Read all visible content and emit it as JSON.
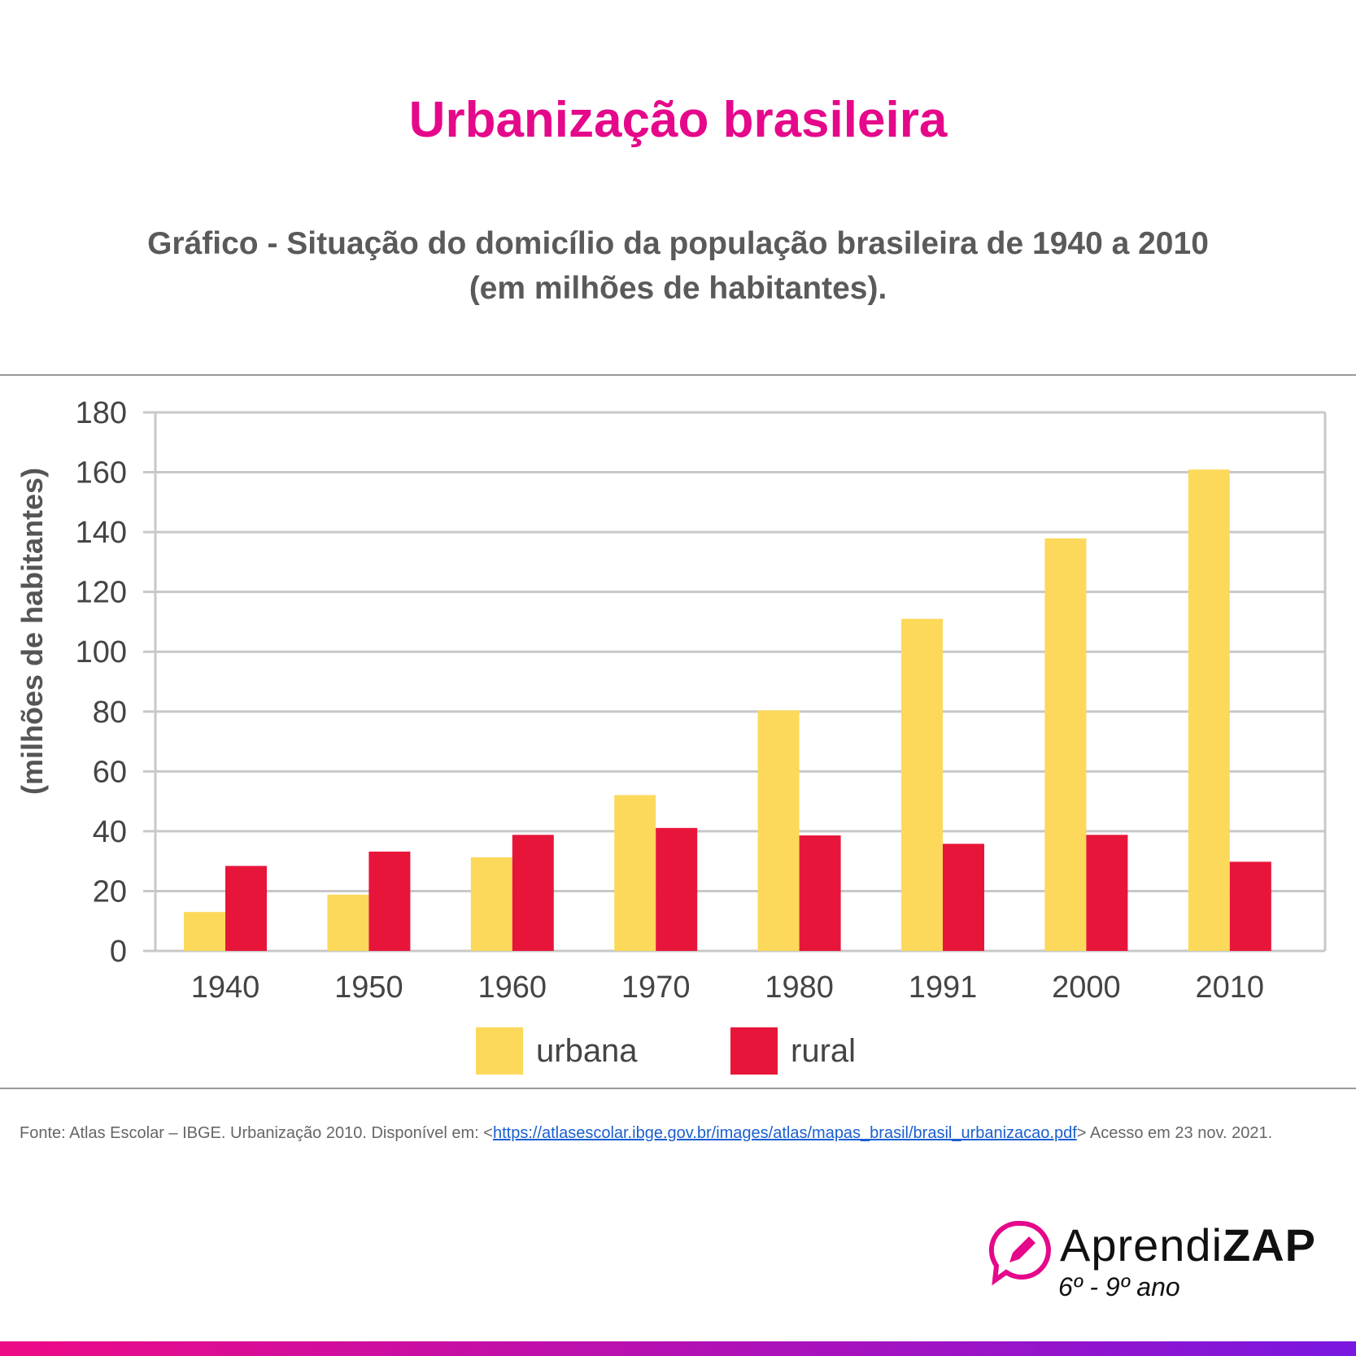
{
  "header": {
    "title": "Urbanização brasileira",
    "subtitle_line1": "Gráfico - Situação do domicílio da população brasileira de 1940 a 2010",
    "subtitle_line2": "(em milhões de habitantes)."
  },
  "chart_data": {
    "type": "bar",
    "ylabel": "(milhões de habitantes)",
    "categories": [
      "1940",
      "1950",
      "1960",
      "1970",
      "1980",
      "1991",
      "2000",
      "2010"
    ],
    "series": [
      {
        "name": "urbana",
        "color": "#fcd95a",
        "values": [
          13,
          18.8,
          31.3,
          52.1,
          80.4,
          111,
          137.9,
          160.9
        ]
      },
      {
        "name": "rural",
        "color": "#e8153a",
        "values": [
          28.4,
          33.2,
          38.8,
          41.1,
          38.6,
          35.8,
          38.8,
          29.8
        ]
      }
    ],
    "ylim": [
      0,
      180
    ],
    "yticks": [
      0,
      20,
      40,
      60,
      80,
      100,
      120,
      140,
      160,
      180
    ],
    "grid": true,
    "legend": "bottom"
  },
  "footer": {
    "source_prefix": "Fonte: Atlas Escolar – IBGE. Urbanização 2010. Disponível em: <",
    "source_link": "https://atlasescolar.ibge.gov.br/images/atlas/mapas_brasil/brasil_urbanizacao.pdf",
    "source_suffix": "> Acesso em 23 nov. 2021."
  },
  "logo": {
    "text_light": "Aprendi",
    "text_bold": "ZAP",
    "grade": "6º - 9º ano",
    "color": "#e5088a"
  }
}
